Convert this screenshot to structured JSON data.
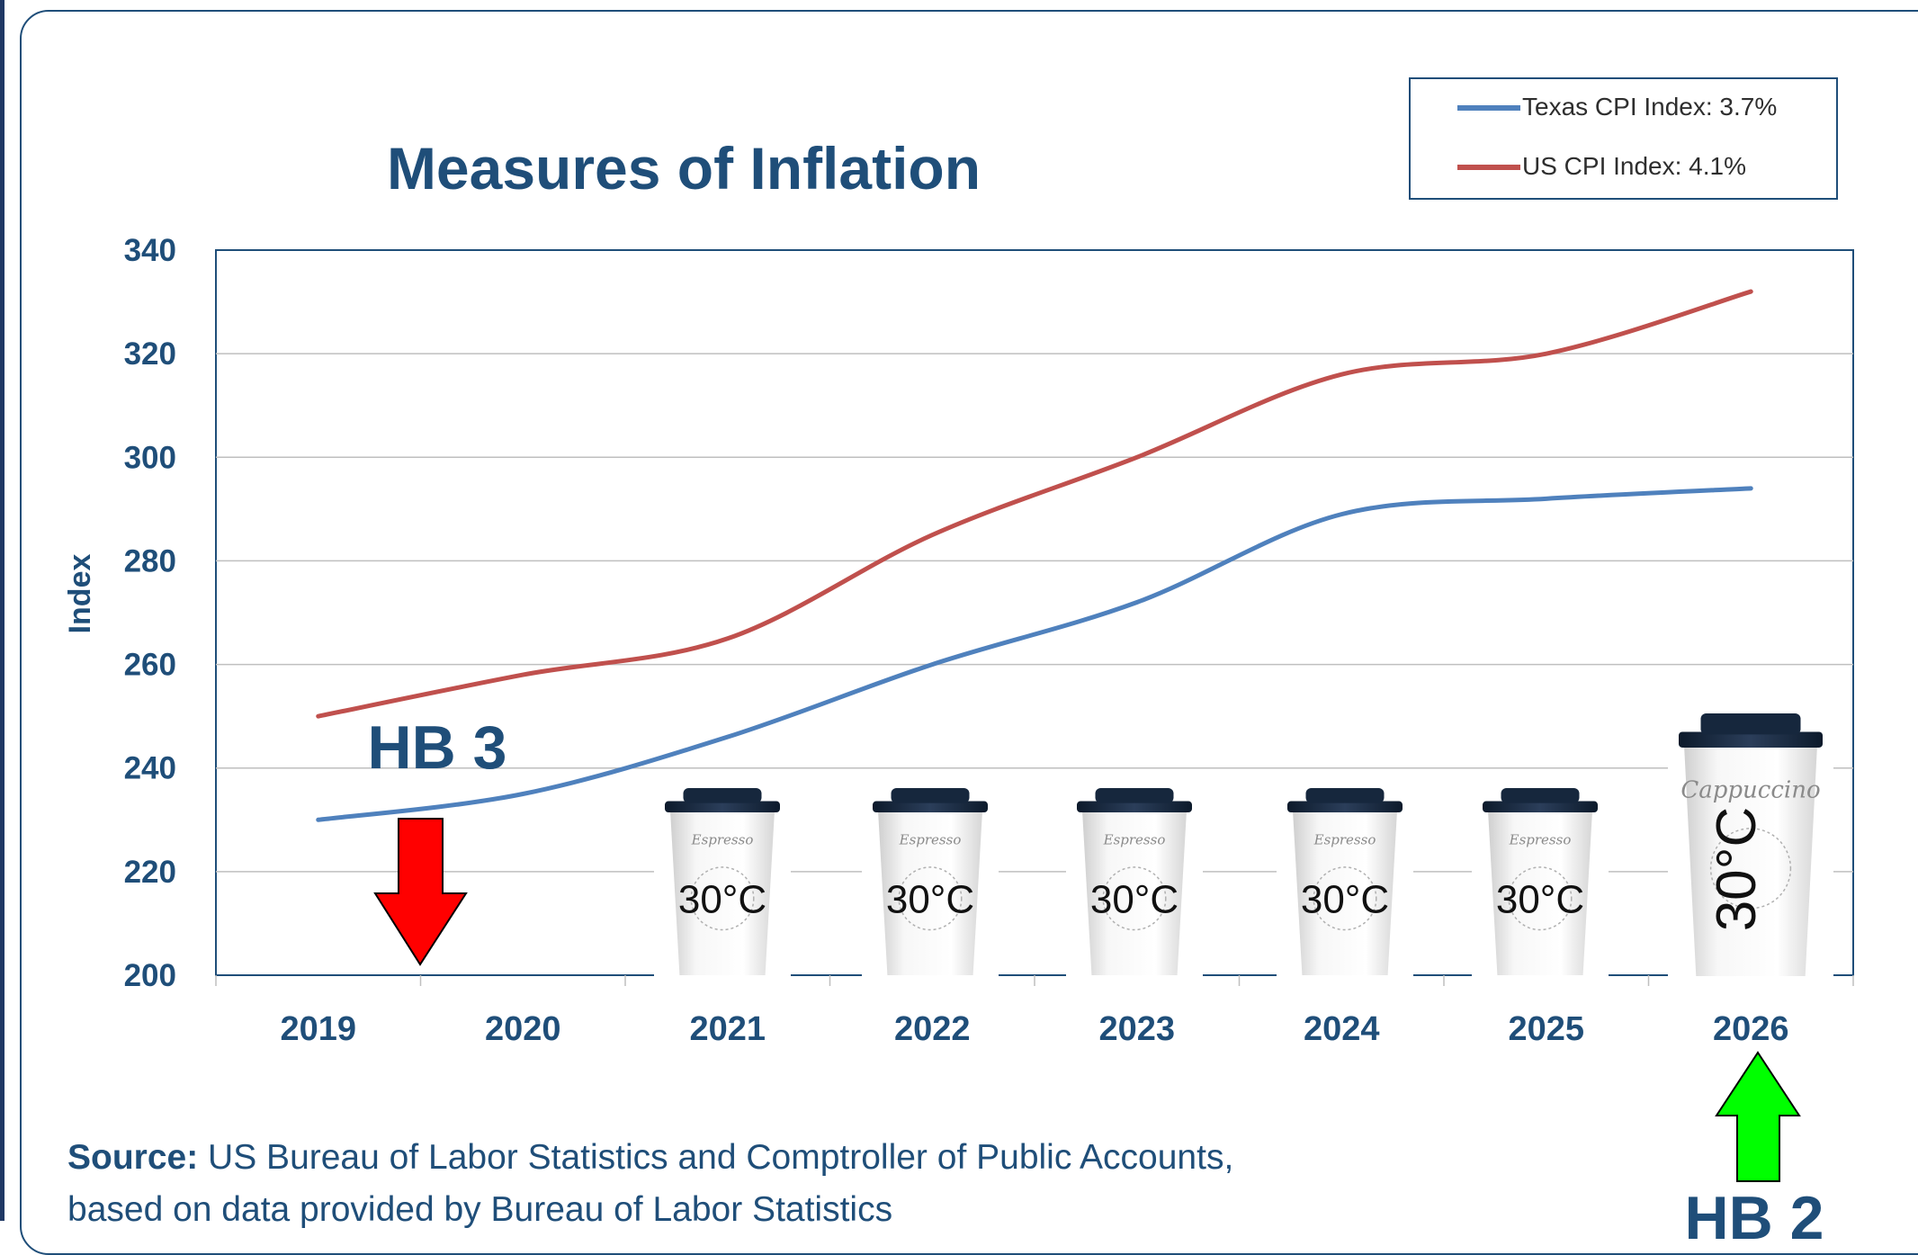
{
  "chart_data": {
    "type": "line",
    "title": "Measures of Inflation",
    "ylabel": "Index",
    "xlabel": "",
    "categories": [
      "2019",
      "2020",
      "2021",
      "2022",
      "2023",
      "2024",
      "2025",
      "2026"
    ],
    "ylim": [
      200,
      340
    ],
    "yticks": [
      200,
      220,
      240,
      260,
      280,
      300,
      320,
      340
    ],
    "grid": "horizontal",
    "legend_position": "top-right",
    "series": [
      {
        "name": "Texas CPI Index: 3.7%",
        "color": "#4f81bd",
        "values": [
          230,
          235,
          246,
          260,
          272,
          289,
          292,
          294
        ]
      },
      {
        "name": "US CPI Index: 4.1%",
        "color": "#c0504d",
        "values": [
          250,
          258,
          265,
          285,
          300,
          316,
          320,
          332
        ]
      }
    ],
    "annotations": [
      {
        "text": "HB 3",
        "arrow": "down",
        "arrow_color": "#ff0000",
        "category": "2019-2020"
      },
      {
        "text": "HB 2",
        "arrow": "up",
        "arrow_color": "#00ff00",
        "category": "2026"
      }
    ],
    "cup_images": {
      "small_cups": [
        {
          "brand": "Espresso",
          "label": "30°C"
        },
        {
          "brand": "Espresso",
          "label": "30°C"
        },
        {
          "brand": "Espresso",
          "label": "30°C"
        },
        {
          "brand": "Espresso",
          "label": "30°C"
        },
        {
          "brand": "Espresso",
          "label": "30°C"
        }
      ],
      "large_cup": {
        "brand": "Cappuccino",
        "label": "30°C"
      }
    }
  },
  "source": {
    "label": "Source:",
    "text": " US Bureau of Labor Statistics and Comptroller of Public Accounts,",
    "line2": "based on data provided by Bureau of Labor Statistics"
  }
}
